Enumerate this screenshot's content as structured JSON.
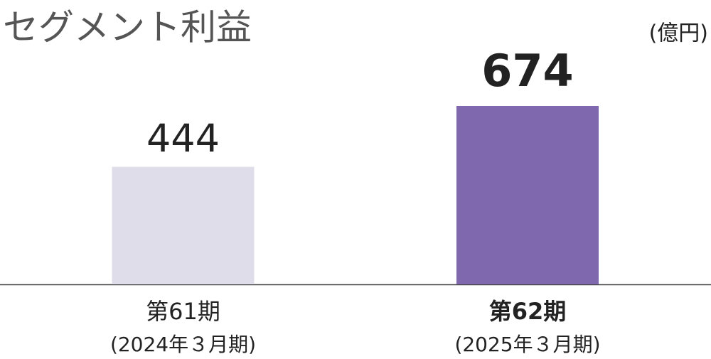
{
  "chart_data": {
    "type": "bar",
    "title": "セグメント利益",
    "unit": "(億円)",
    "categories": [
      "第61期",
      "第62期"
    ],
    "category_subtitles": [
      "(2024年３月期)",
      "(2025年３月期)"
    ],
    "values": [
      444,
      674
    ],
    "colors": [
      "#dedde9",
      "#7f68ad"
    ],
    "highlight": [
      false,
      true
    ]
  }
}
